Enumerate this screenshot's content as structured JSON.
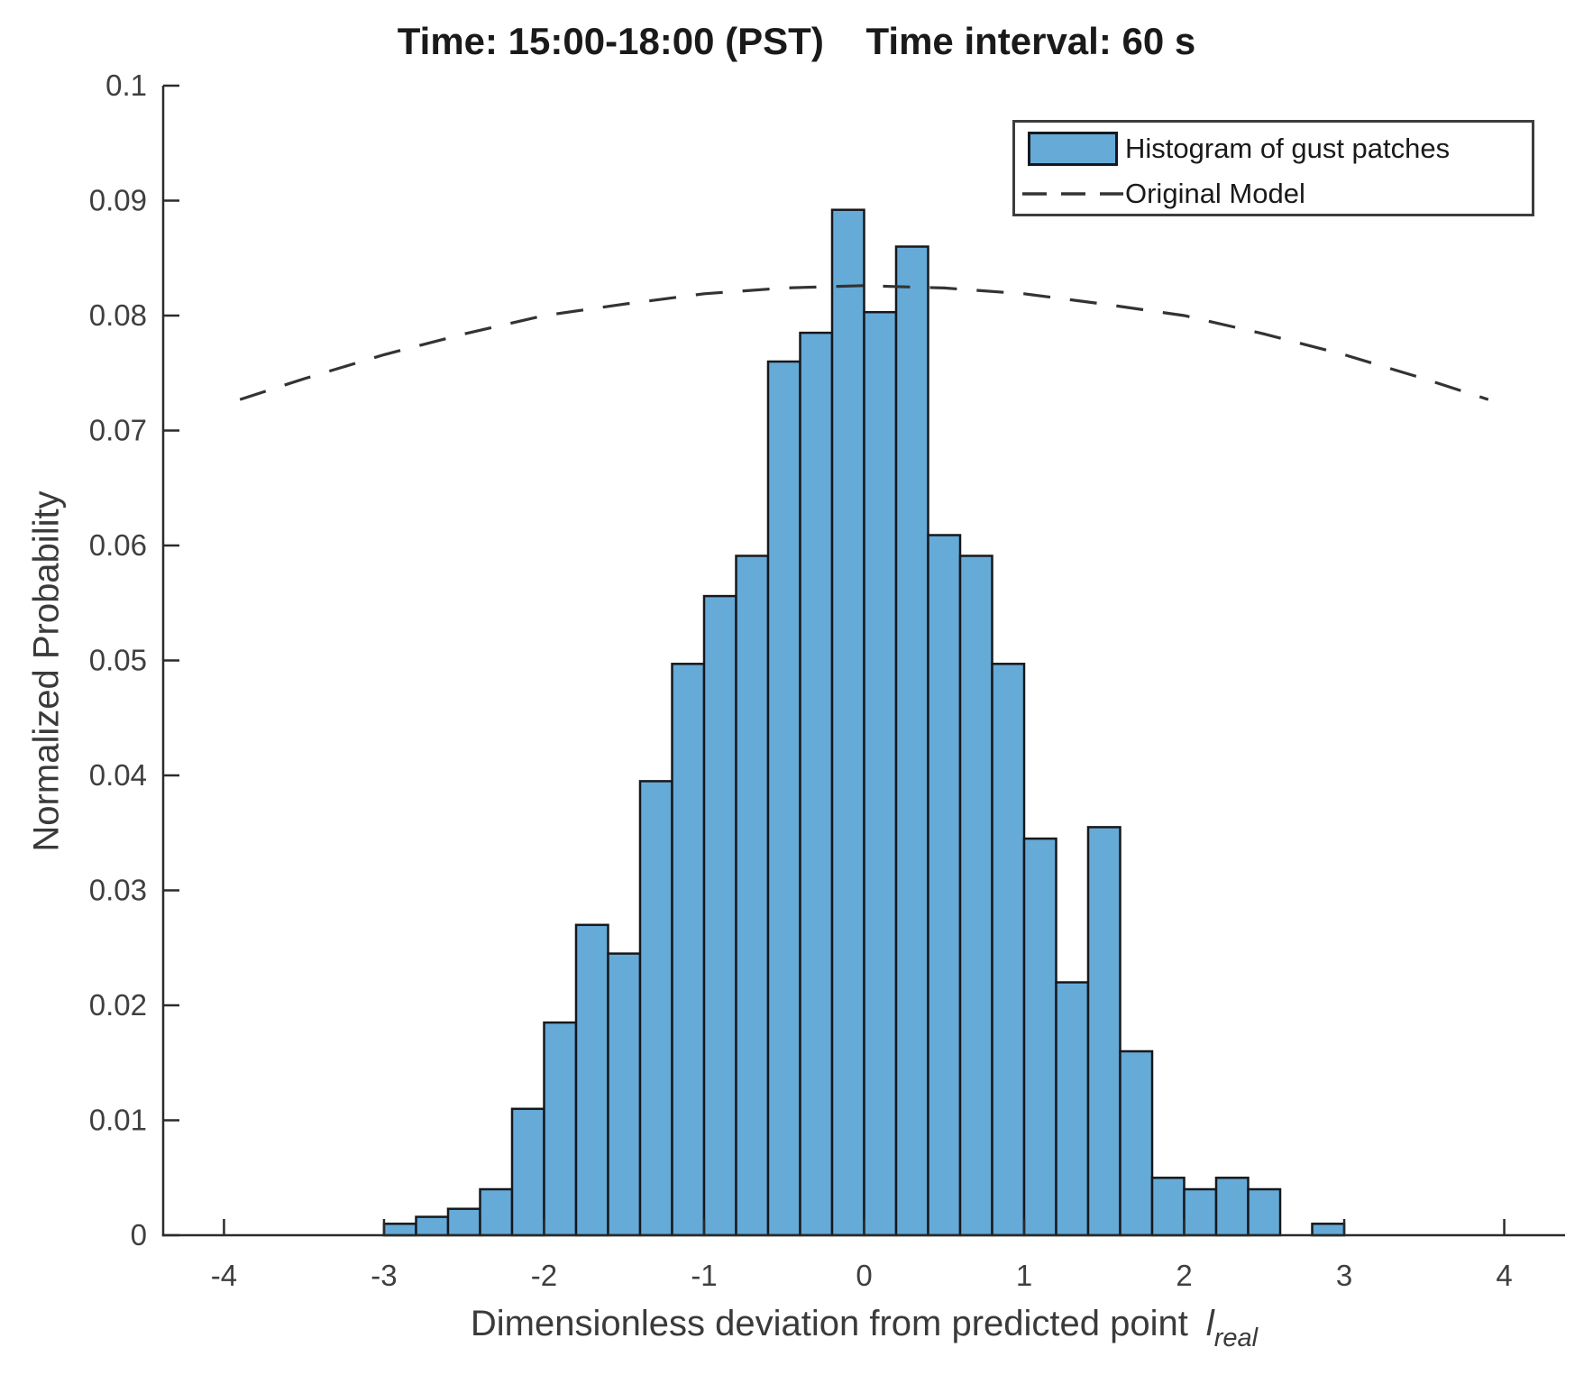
{
  "title": "Time: 15:00-18:00 (PST)    Time interval: 60 s",
  "y_axis_label": "Normalized Probability",
  "x_axis_label": {
    "main": "Dimensionless deviation from predicted point",
    "var": "l",
    "sub": "real"
  },
  "legend": {
    "histogram_label": "Histogram of gust patches",
    "model_label": "Original Model"
  },
  "colors": {
    "bar_fill": "#66AAD7",
    "bar_edge": "#16181d",
    "axis": "#2b2b2b",
    "tick_label": "#3f3f3f",
    "model_line": "#333333"
  },
  "chart_data": {
    "type": "bar",
    "subtype": "histogram_with_model_line",
    "title": "Time: 15:00-18:00 (PST)    Time interval: 60 s",
    "xlabel": "Dimensionless deviation from predicted point l_real",
    "ylabel": "Normalized Probability",
    "xlim": [
      -4.38,
      4.38
    ],
    "ylim": [
      0,
      0.1
    ],
    "grid": false,
    "legend_position": "upper right",
    "x_tick_values": [
      -4,
      -3,
      -2,
      -1,
      0,
      1,
      2,
      3,
      4
    ],
    "x_tick_labels": [
      "-4",
      "-3",
      "-2",
      "-1",
      "0",
      "1",
      "2",
      "3",
      "4"
    ],
    "y_tick_values": [
      0,
      0.01,
      0.02,
      0.03,
      0.04,
      0.05,
      0.06,
      0.07,
      0.08,
      0.09,
      0.1
    ],
    "y_tick_labels": [
      "0",
      "0.01",
      "0.02",
      "0.03",
      "0.04",
      "0.05",
      "0.06",
      "0.07",
      "0.08",
      "0.09",
      "0.1"
    ],
    "histogram": {
      "name": "Histogram of gust patches",
      "bin_start": -3.0,
      "bin_width": 0.2,
      "values": [
        0.001,
        0.0016,
        0.0023,
        0.004,
        0.011,
        0.0185,
        0.027,
        0.0245,
        0.0395,
        0.0497,
        0.0556,
        0.0591,
        0.076,
        0.0785,
        0.0892,
        0.0803,
        0.086,
        0.0609,
        0.0591,
        0.0497,
        0.0345,
        0.022,
        0.0355,
        0.016,
        0.005,
        0.004,
        0.005,
        0.004,
        0.0,
        0.001
      ]
    },
    "model": {
      "name": "Original Model",
      "style": "dashed",
      "points": [
        [
          -3.9,
          0.0727
        ],
        [
          -3.5,
          0.0745
        ],
        [
          -3.0,
          0.0766
        ],
        [
          -2.5,
          0.0784
        ],
        [
          -2.0,
          0.08
        ],
        [
          -1.5,
          0.081
        ],
        [
          -1.0,
          0.0819
        ],
        [
          -0.5,
          0.0824
        ],
        [
          0.0,
          0.0826
        ],
        [
          0.5,
          0.0824
        ],
        [
          1.0,
          0.0819
        ],
        [
          1.5,
          0.081
        ],
        [
          2.0,
          0.08
        ],
        [
          2.5,
          0.0784
        ],
        [
          3.0,
          0.0766
        ],
        [
          3.5,
          0.0745
        ],
        [
          3.9,
          0.0727
        ]
      ]
    }
  }
}
